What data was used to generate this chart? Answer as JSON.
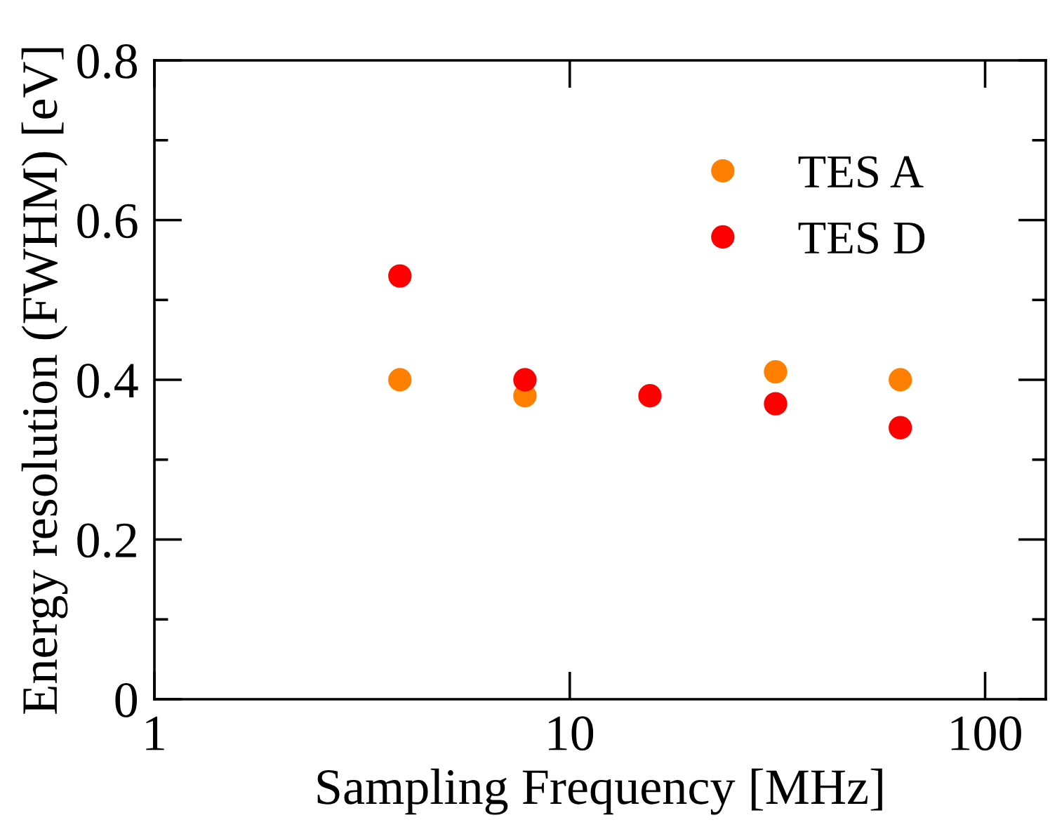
{
  "chart_data": {
    "type": "scatter",
    "xlabel": "Sampling Frequency [MHz]",
    "ylabel": "Energy resolution (FWHM) [eV]",
    "x": [
      3.9,
      7.8,
      15.6,
      31.3,
      62.5
    ],
    "series": [
      {
        "name": "TES A",
        "color": "#ff8000",
        "values": [
          0.4,
          0.38,
          null,
          0.41,
          0.4
        ]
      },
      {
        "name": "TES D",
        "color": "#ff0000",
        "values": [
          0.53,
          0.4,
          0.38,
          0.37,
          0.34
        ]
      }
    ],
    "log": "x",
    "xlim": [
      1,
      140
    ],
    "xticks": [
      1,
      10,
      100
    ],
    "ylim": [
      0,
      0.8
    ],
    "yticks": [
      {
        "value": 0,
        "label": "0"
      },
      {
        "value": 0.2,
        "label": "0.2"
      },
      {
        "value": 0.4,
        "label": "0.4"
      },
      {
        "value": 0.6,
        "label": "0.6"
      },
      {
        "value": 0.8,
        "label": "0.8"
      }
    ],
    "grid": false,
    "legend": "top right",
    "marker": "circle"
  }
}
